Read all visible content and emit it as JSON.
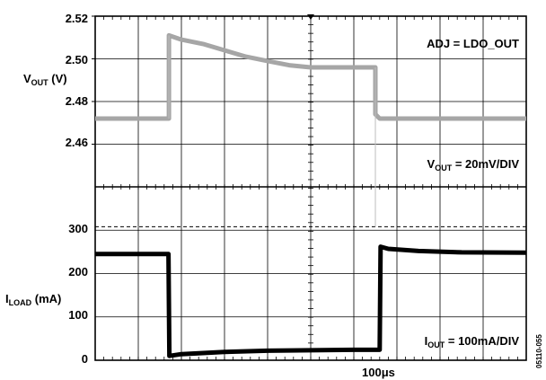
{
  "chart_data": [
    {
      "type": "line",
      "title": "",
      "ylabel": {
        "main": "V",
        "sub": "OUT",
        "unit": " (V)"
      },
      "ylim": [
        2.44,
        2.52
      ],
      "yticks": [
        "2.52",
        "2.50",
        "2.48",
        "2.46"
      ],
      "annotation_top": "ADJ = LDO_OUT",
      "annotation_bottom": {
        "main": "V",
        "sub": "OUT",
        "rest": " = 20mV/DIV"
      },
      "series": [
        {
          "color": "#a6a6a6",
          "x": [
            0,
            1.71,
            1.71,
            2.0,
            2.5,
            3.0,
            3.5,
            4.0,
            4.5,
            5.0,
            5.5,
            6.0,
            6.5,
            6.5,
            6.6,
            7.0,
            8.0,
            10.0
          ],
          "y": [
            2.472,
            2.472,
            2.511,
            2.509,
            2.507,
            2.504,
            2.501,
            2.499,
            2.497,
            2.496,
            2.496,
            2.496,
            2.496,
            2.474,
            2.472,
            2.472,
            2.472,
            2.472
          ]
        }
      ]
    },
    {
      "type": "line",
      "ylabel": {
        "main": "I",
        "sub": "LOAD",
        "unit": " (mA)"
      },
      "ylim": [
        0,
        400
      ],
      "yticks": [
        "300",
        "200",
        "100",
        "0"
      ],
      "reference_line": 308,
      "annotation_bottom": {
        "main": "I",
        "sub": "OUT",
        "rest": " = 100mA/DIV"
      },
      "series": [
        {
          "color": "#000000",
          "x": [
            0,
            1.7,
            1.72,
            2.0,
            3.0,
            4.0,
            5.0,
            6.0,
            6.6,
            6.62,
            6.8,
            7.5,
            8.5,
            10.0
          ],
          "y": [
            245,
            245,
            10,
            14,
            19,
            22,
            23,
            24,
            24,
            262,
            257,
            252,
            249,
            248
          ]
        }
      ]
    }
  ],
  "x_axis": {
    "divisions": 10,
    "label": {
      "value": "100",
      "unit": "μs"
    }
  },
  "figure_id": "05110-055"
}
